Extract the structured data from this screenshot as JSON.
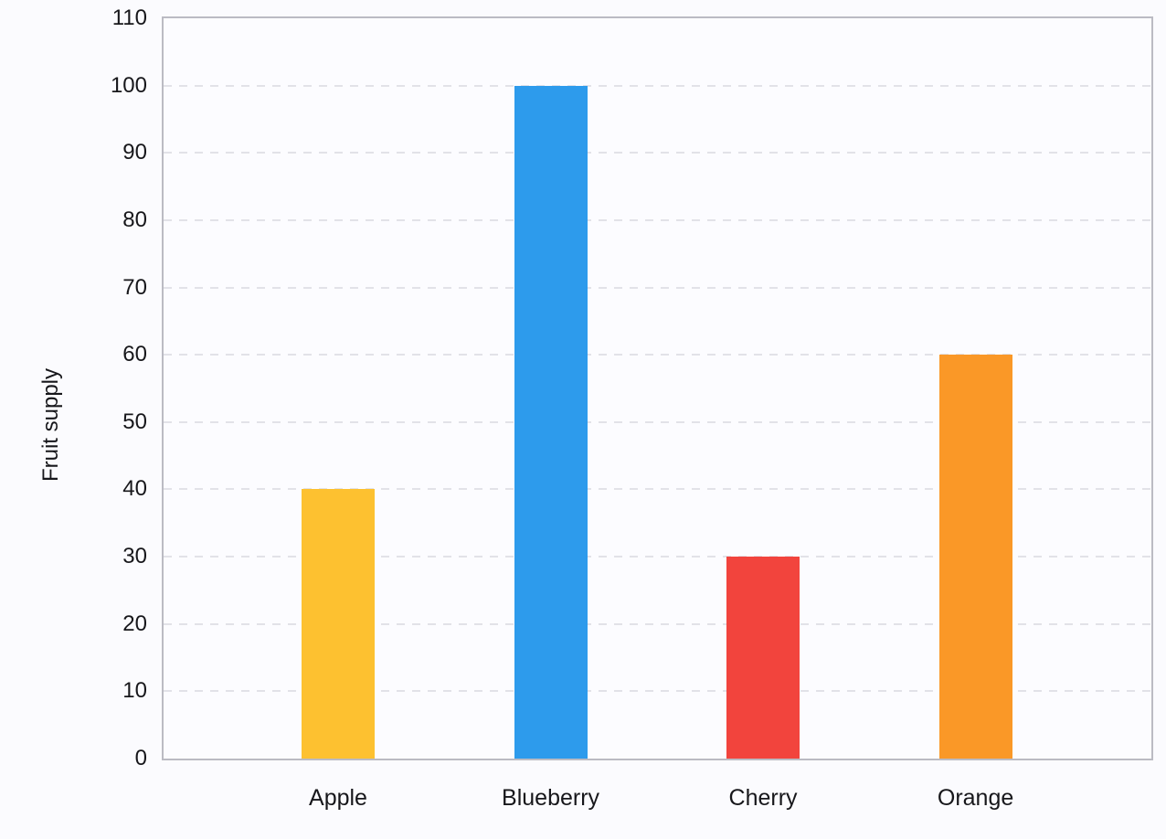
{
  "chart_data": {
    "type": "bar",
    "categories": [
      "Apple",
      "Blueberry",
      "Cherry",
      "Orange"
    ],
    "values": [
      40,
      100,
      30,
      60
    ],
    "bar_colors": [
      "#FDC130",
      "#2D9BEC",
      "#F2443D",
      "#FA9827"
    ],
    "title": "",
    "xlabel": "",
    "ylabel": "Fruit supply",
    "ylim": [
      0,
      110
    ],
    "yticks": [
      0,
      10,
      20,
      30,
      40,
      50,
      60,
      70,
      80,
      90,
      100,
      110
    ],
    "grid": "dashed horizontal gridlines at every 10 units",
    "legend": "none",
    "colors": {
      "background": "#FBFBFE",
      "plot_background": "#FCFCFF",
      "plot_border": "#BBBBC3",
      "gridline": "#E2E2E8",
      "text": "#17171B"
    }
  }
}
